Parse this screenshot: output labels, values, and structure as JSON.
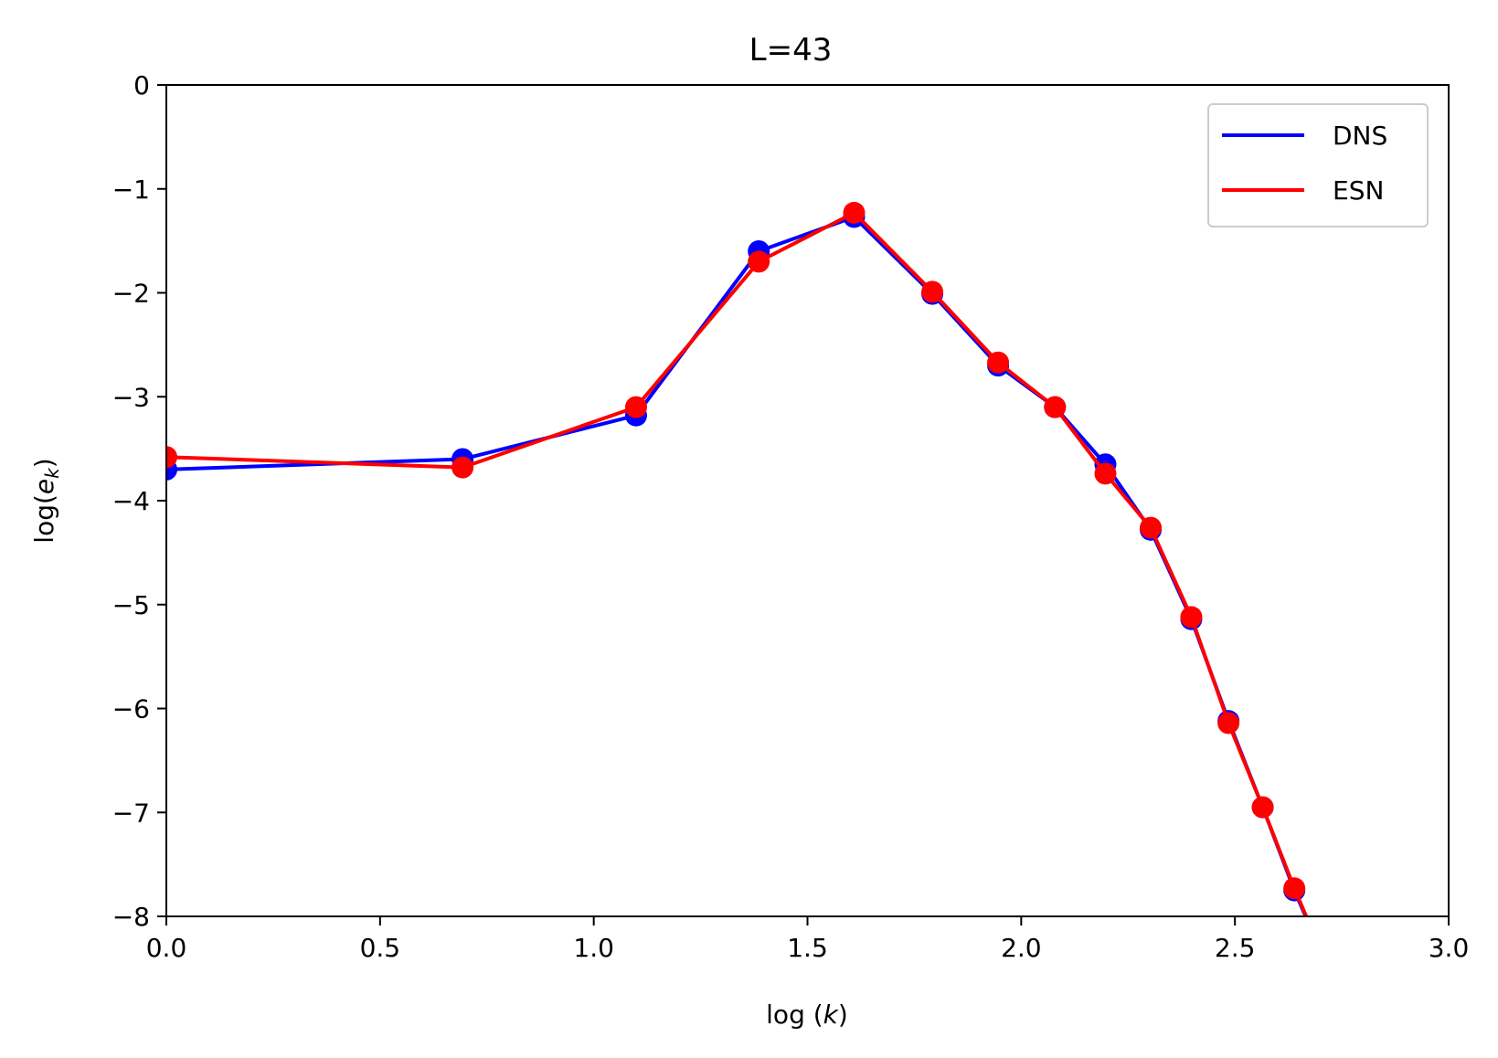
{
  "chart_data": {
    "type": "line",
    "title": "L=43",
    "xlabel": {
      "prefix": "log (",
      "var": "k",
      "suffix": ")"
    },
    "ylabel": {
      "prefix": "log(",
      "var": "e",
      "sub": "k",
      "suffix": ")"
    },
    "xlim": [
      0,
      3
    ],
    "ylim": [
      -8,
      0
    ],
    "x_ticks": [
      0.0,
      0.5,
      1.0,
      1.5,
      2.0,
      2.5,
      3.0
    ],
    "x_tick_labels": [
      "0.0",
      "0.5",
      "1.0",
      "1.5",
      "2.0",
      "2.5",
      "3.0"
    ],
    "y_ticks": [
      0,
      -1,
      -2,
      -3,
      -4,
      -5,
      -6,
      -7,
      -8
    ],
    "y_tick_labels": [
      "0",
      "−1",
      "−2",
      "−3",
      "−4",
      "−5",
      "−6",
      "−7",
      "−8"
    ],
    "grid": false,
    "legend_position": "top-right",
    "series": [
      {
        "name": "DNS",
        "color": "#0000ff",
        "x": [
          0.0,
          0.693,
          1.099,
          1.386,
          1.609,
          1.792,
          1.946,
          2.079,
          2.197,
          2.303,
          2.398,
          2.485,
          2.565,
          2.639,
          2.708
        ],
        "y": [
          -3.7,
          -3.6,
          -3.18,
          -1.6,
          -1.27,
          -2.01,
          -2.7,
          -3.1,
          -3.65,
          -4.28,
          -5.14,
          -6.12,
          -6.95,
          -7.75,
          -8.4
        ]
      },
      {
        "name": "ESN",
        "color": "#ff0000",
        "x": [
          0.0,
          0.693,
          1.099,
          1.386,
          1.609,
          1.792,
          1.946,
          2.079,
          2.197,
          2.303,
          2.398,
          2.485,
          2.565,
          2.639,
          2.708
        ],
        "y": [
          -3.58,
          -3.68,
          -3.1,
          -1.7,
          -1.23,
          -1.99,
          -2.67,
          -3.1,
          -3.74,
          -4.26,
          -5.12,
          -6.14,
          -6.95,
          -7.73,
          -8.4
        ]
      }
    ]
  }
}
